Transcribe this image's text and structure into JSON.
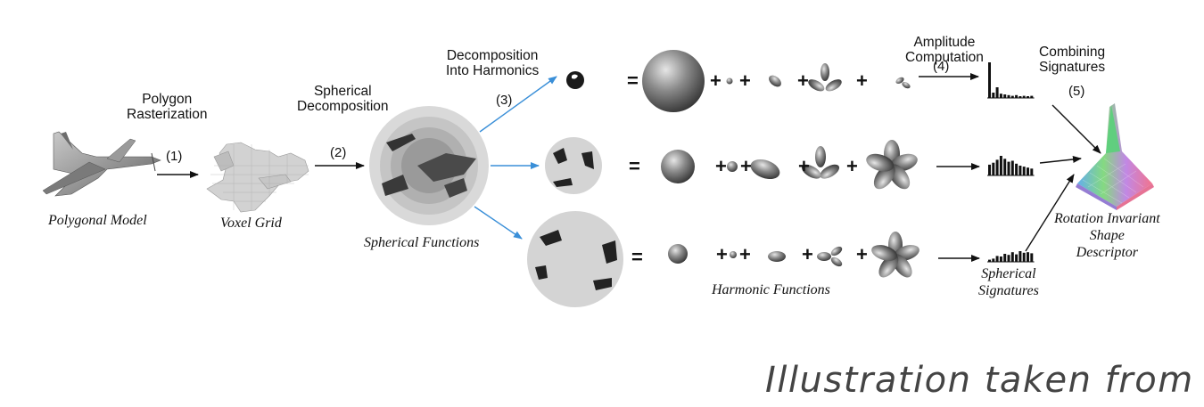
{
  "labels": {
    "polygon_rasterization": [
      "Polygon",
      "Rasterization"
    ],
    "spherical_decomposition": [
      "Spherical",
      "Decomposition"
    ],
    "decomposition_into_harmonics": [
      "Decomposition",
      "Into Harmonics"
    ],
    "amplitude_computation": [
      "Amplitude",
      "Computation"
    ],
    "combining_signatures": [
      "Combining",
      "Signatures"
    ]
  },
  "steps": {
    "s1": "(1)",
    "s2": "(2)",
    "s3": "(3)",
    "s4": "(4)",
    "s5": "(5)"
  },
  "captions": {
    "polygonal_model": "Polygonal Model",
    "voxel_grid": "Voxel Grid",
    "spherical_functions": "Spherical Functions",
    "harmonic_functions": "Harmonic Functions",
    "spherical_signatures": [
      "Spherical",
      "Signatures"
    ],
    "descriptor": [
      "Rotation Invariant",
      "Shape",
      "Descriptor"
    ]
  },
  "symbols": {
    "equals": "=",
    "plus": "+"
  },
  "footer_text": "Illustration taken from",
  "colors": {
    "arrow_black": "#111111",
    "arrow_blue": "#3a8fd8",
    "sphere_gray": "#d4d4d4",
    "shape_dark": "#555555"
  },
  "signatures": {
    "row1": [
      1.0,
      0.15,
      0.3,
      0.12,
      0.1,
      0.08,
      0.06,
      0.08,
      0.05,
      0.06,
      0.05,
      0.06
    ],
    "row2": [
      0.55,
      0.65,
      0.8,
      1.0,
      0.85,
      0.7,
      0.75,
      0.6,
      0.5,
      0.45,
      0.4,
      0.35
    ],
    "row3": [
      0.2,
      0.3,
      0.55,
      0.5,
      0.75,
      0.65,
      0.9,
      0.7,
      1.0,
      0.85,
      0.9,
      0.8
    ]
  }
}
